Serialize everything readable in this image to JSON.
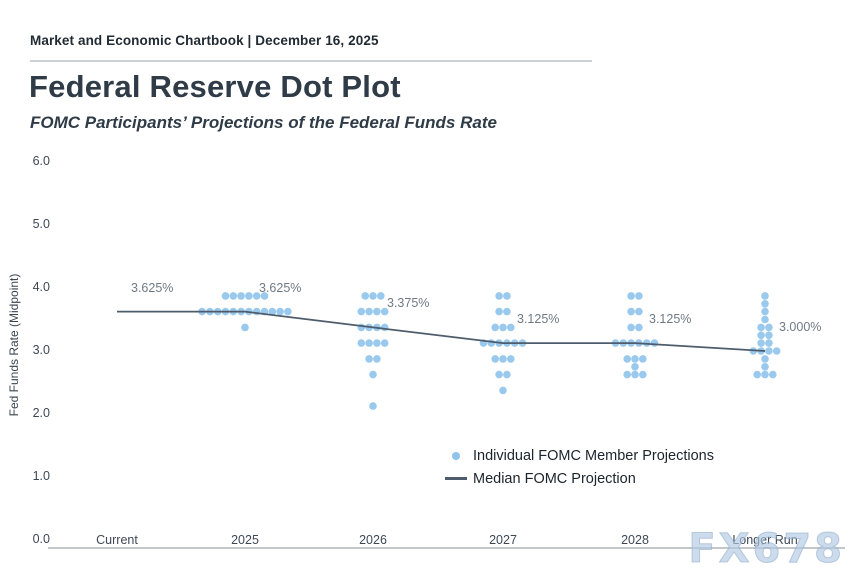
{
  "header": {
    "text": "Market and Economic Chartbook | December 16, 2025"
  },
  "title": "Federal Reserve Dot Plot",
  "subtitle": "FOMC Participants’ Projections of the Federal Funds Rate",
  "watermark": "FX678",
  "legend": {
    "items": [
      {
        "label": "Individual FOMC Member Projections",
        "marker": "dot"
      },
      {
        "label": "Median FOMC Projection",
        "marker": "line"
      }
    ]
  },
  "colors": {
    "dot": "#8fc3ec",
    "median_line": "#4e5c6b",
    "axis_line": "#c2c7cc",
    "title_text": "#2f3b47",
    "median_label_text": "#707a84",
    "watermark": "#b0cae3"
  },
  "chart_data": {
    "type": "scatter",
    "title": "Federal Reserve Dot Plot",
    "subtitle": "FOMC Participants’ Projections of the Federal Funds Rate",
    "xlabel": "",
    "ylabel": "Fed Funds Rate (Midpoint)",
    "ylim": [
      0.0,
      6.0
    ],
    "grid": false,
    "legend_position": "lower right inside",
    "yticks": [
      {
        "value": 6.0,
        "label": "6.0"
      },
      {
        "value": 5.0,
        "label": "5.0"
      },
      {
        "value": 4.0,
        "label": "4.0"
      },
      {
        "value": 3.0,
        "label": "3.0"
      },
      {
        "value": 2.0,
        "label": "2.0"
      },
      {
        "value": 1.0,
        "label": "1.0"
      },
      {
        "value": 0.0,
        "label": "0.0"
      }
    ],
    "categories": [
      "Current",
      "2025",
      "2026",
      "2027",
      "2028",
      "Longer Run"
    ],
    "median_series": {
      "name": "Median FOMC Projection",
      "values": [
        3.625,
        3.625,
        3.375,
        3.125,
        3.125,
        3.0
      ],
      "labels": [
        "3.625%",
        "3.625%",
        "3.375%",
        "3.125%",
        "3.125%",
        "3.000%"
      ]
    },
    "dots_series": {
      "name": "Individual FOMC Member Projections",
      "columns": [
        {
          "category": "Current",
          "dots": []
        },
        {
          "category": "2025",
          "dots": [
            {
              "rate": 3.875,
              "count": 6
            },
            {
              "rate": 3.625,
              "count": 12
            },
            {
              "rate": 3.375,
              "count": 1
            }
          ]
        },
        {
          "category": "2026",
          "dots": [
            {
              "rate": 3.875,
              "count": 3
            },
            {
              "rate": 3.625,
              "count": 4
            },
            {
              "rate": 3.375,
              "count": 4
            },
            {
              "rate": 3.125,
              "count": 4
            },
            {
              "rate": 2.875,
              "count": 2
            },
            {
              "rate": 2.625,
              "count": 1
            },
            {
              "rate": 2.125,
              "count": 1
            }
          ]
        },
        {
          "category": "2027",
          "dots": [
            {
              "rate": 3.875,
              "count": 2
            },
            {
              "rate": 3.625,
              "count": 2
            },
            {
              "rate": 3.375,
              "count": 3
            },
            {
              "rate": 3.125,
              "count": 6
            },
            {
              "rate": 2.875,
              "count": 3
            },
            {
              "rate": 2.625,
              "count": 2
            },
            {
              "rate": 2.375,
              "count": 1
            }
          ]
        },
        {
          "category": "2028",
          "dots": [
            {
              "rate": 3.875,
              "count": 2
            },
            {
              "rate": 3.625,
              "count": 2
            },
            {
              "rate": 3.375,
              "count": 2
            },
            {
              "rate": 3.125,
              "count": 6
            },
            {
              "rate": 2.875,
              "count": 3
            },
            {
              "rate": 2.75,
              "count": 1
            },
            {
              "rate": 2.625,
              "count": 3
            }
          ]
        },
        {
          "category": "Longer Run",
          "dots": [
            {
              "rate": 3.875,
              "count": 1
            },
            {
              "rate": 3.75,
              "count": 1
            },
            {
              "rate": 3.625,
              "count": 1
            },
            {
              "rate": 3.5,
              "count": 1
            },
            {
              "rate": 3.375,
              "count": 2
            },
            {
              "rate": 3.25,
              "count": 2
            },
            {
              "rate": 3.125,
              "count": 2
            },
            {
              "rate": 3.0,
              "count": 4
            },
            {
              "rate": 2.875,
              "count": 1
            },
            {
              "rate": 2.75,
              "count": 1
            },
            {
              "rate": 2.625,
              "count": 3
            }
          ]
        }
      ]
    }
  }
}
